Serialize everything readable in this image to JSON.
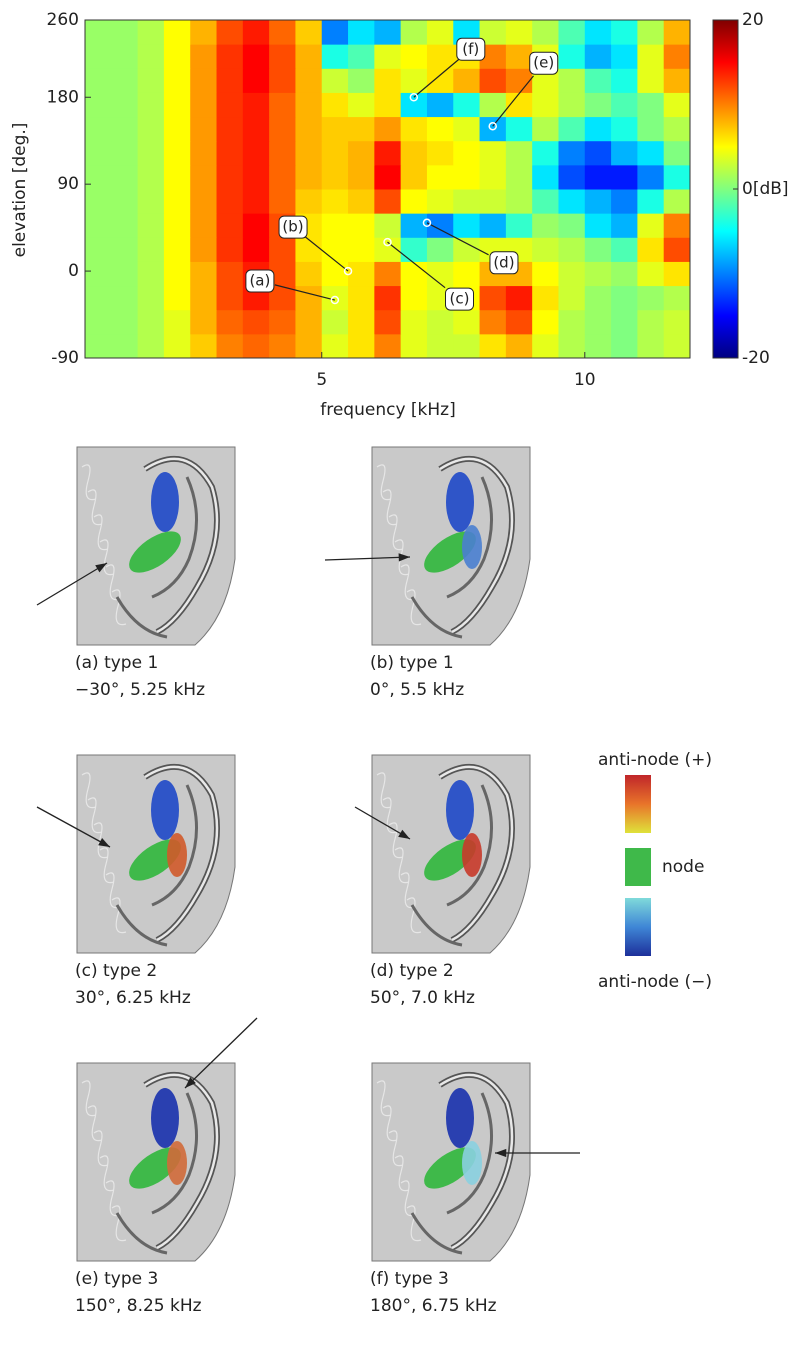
{
  "chart_data": {
    "type": "heatmap",
    "xlabel": "frequency [kHz]",
    "ylabel": "elevation [deg.]",
    "x": [
      0.75,
      1.25,
      1.75,
      2.25,
      2.75,
      3.25,
      3.75,
      4.25,
      4.75,
      5.25,
      5.75,
      6.25,
      6.75,
      7.25,
      7.75,
      8.25,
      8.75,
      9.25,
      9.75,
      10.25,
      10.75,
      11.25,
      11.75
    ],
    "y": [
      -77.5,
      -52.5,
      -27.5,
      -2.5,
      22.5,
      47.5,
      72.5,
      97.5,
      122.5,
      147.5,
      172.5,
      197.5,
      222.5,
      247.5
    ],
    "z": [
      [
        1,
        1,
        2,
        4,
        7,
        10,
        11,
        10,
        8,
        4,
        6,
        10,
        4,
        3,
        3,
        6,
        8,
        4,
        2,
        1,
        0,
        2,
        3
      ],
      [
        1,
        1,
        2,
        4,
        8,
        11,
        12,
        11,
        8,
        3,
        6,
        12,
        4,
        3,
        4,
        10,
        12,
        5,
        2,
        1,
        0,
        2,
        3
      ],
      [
        1,
        1,
        2,
        5,
        8,
        12,
        14,
        12,
        8,
        4,
        6,
        13,
        5,
        4,
        5,
        12,
        14,
        6,
        3,
        1,
        0,
        1,
        2
      ],
      [
        1,
        1,
        2,
        5,
        8,
        12,
        14,
        12,
        7,
        5,
        6,
        10,
        5,
        4,
        5,
        8,
        8,
        5,
        3,
        2,
        1,
        4,
        6
      ],
      [
        1,
        1,
        2,
        5,
        9,
        13,
        15,
        12,
        6,
        5,
        5,
        4,
        -3,
        0,
        3,
        4,
        4,
        3,
        2,
        0,
        -2,
        6,
        12
      ],
      [
        1,
        1,
        2,
        5,
        9,
        13,
        15,
        12,
        6,
        5,
        5,
        3,
        -8,
        -10,
        -6,
        -8,
        -3,
        1,
        0,
        -6,
        -8,
        4,
        10
      ],
      [
        1,
        1,
        2,
        5,
        9,
        13,
        14,
        11,
        7,
        6,
        7,
        12,
        5,
        4,
        3,
        3,
        2,
        -2,
        -6,
        -8,
        -10,
        -4,
        2
      ],
      [
        1,
        1,
        2,
        5,
        9,
        13,
        14,
        11,
        8,
        7,
        8,
        15,
        7,
        5,
        5,
        4,
        2,
        -6,
        -12,
        -14,
        -14,
        -10,
        -4
      ],
      [
        1,
        1,
        2,
        5,
        9,
        13,
        14,
        11,
        8,
        7,
        8,
        14,
        7,
        6,
        5,
        4,
        2,
        -4,
        -10,
        -12,
        -8,
        -6,
        0
      ],
      [
        1,
        1,
        2,
        5,
        9,
        13,
        14,
        11,
        8,
        7,
        7,
        9,
        6,
        5,
        4,
        -8,
        -4,
        2,
        -2,
        -6,
        -4,
        0,
        2
      ],
      [
        1,
        1,
        2,
        5,
        9,
        13,
        14,
        11,
        8,
        6,
        4,
        6,
        -6,
        -8,
        -4,
        2,
        6,
        4,
        2,
        0,
        -2,
        0,
        4
      ],
      [
        1,
        1,
        2,
        5,
        9,
        13,
        15,
        12,
        8,
        3,
        1,
        6,
        4,
        6,
        8,
        12,
        10,
        4,
        2,
        -2,
        -4,
        4,
        8
      ],
      [
        1,
        1,
        2,
        5,
        9,
        13,
        15,
        12,
        8,
        -4,
        -2,
        4,
        5,
        6,
        6,
        10,
        8,
        4,
        -4,
        -8,
        -6,
        4,
        10
      ],
      [
        1,
        1,
        2,
        5,
        8,
        12,
        14,
        11,
        7,
        -10,
        -6,
        -8,
        2,
        4,
        -6,
        3,
        4,
        2,
        -2,
        -6,
        -4,
        2,
        8
      ]
    ],
    "xlim": [
      0.5,
      12
    ],
    "ylim": [
      -90,
      260
    ],
    "xticks": [
      5,
      10
    ],
    "yticks": [
      -90,
      0,
      90,
      180,
      260
    ],
    "zlim": [
      -20,
      20
    ],
    "zticks": [
      -20,
      {
        "value": 0,
        "label": "0[dB]"
      },
      20
    ],
    "colormap": "jet",
    "points": [
      {
        "label": "(a)",
        "x": 5.25,
        "y": -30
      },
      {
        "label": "(b)",
        "x": 5.5,
        "y": 0
      },
      {
        "label": "(c)",
        "x": 6.25,
        "y": 30
      },
      {
        "label": "(d)",
        "x": 7.0,
        "y": 50
      },
      {
        "label": "(e)",
        "x": 8.25,
        "y": 150
      },
      {
        "label": "(f)",
        "x": 6.75,
        "y": 180
      }
    ]
  },
  "panels": [
    {
      "label": "(a) type 1",
      "detail": "−30°, 5.25 kHz"
    },
    {
      "label": "(b) type 1",
      "detail": "0°, 5.5 kHz"
    },
    {
      "label": "(c) type 2",
      "detail": "30°, 6.25 kHz"
    },
    {
      "label": "(d) type 2",
      "detail": "50°, 7.0 kHz"
    },
    {
      "label": "(e) type 3",
      "detail": "150°, 8.25 kHz"
    },
    {
      "label": "(f) type 3",
      "detail": "180°, 6.75 kHz"
    }
  ],
  "legend": {
    "top": "anti-node (+)",
    "middle": "node",
    "bottom": "anti-node (−)"
  }
}
